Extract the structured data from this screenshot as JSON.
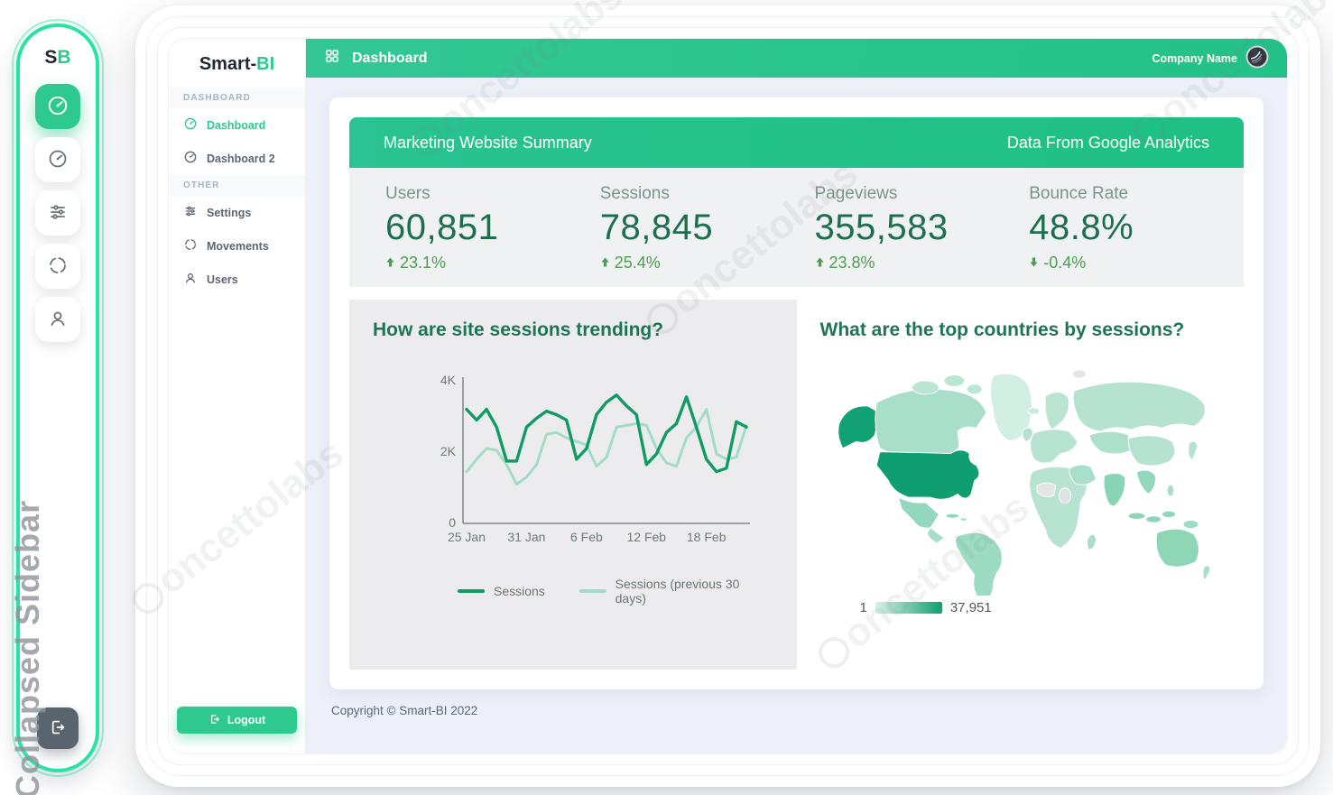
{
  "mini_sidebar": {
    "logo_s": "S",
    "logo_b": "B",
    "icons": [
      "dashboard-gauge-icon-active",
      "dashboard-gauge-icon",
      "settings-sliders-icon",
      "movements-refresh-icon",
      "users-person-icon",
      "logout-icon"
    ],
    "annotation_label": "Collapsed Sidebar"
  },
  "sidebar": {
    "logo_primary": "Smart-",
    "logo_accent": "BI",
    "sections": [
      {
        "header": "DASHBOARD",
        "items": [
          {
            "label": "Dashboard",
            "active": true
          },
          {
            "label": "Dashboard 2",
            "active": false
          }
        ]
      },
      {
        "header": "OTHER",
        "items": [
          {
            "label": "Settings",
            "active": false
          },
          {
            "label": "Movements",
            "active": false
          },
          {
            "label": "Users",
            "active": false
          }
        ]
      }
    ],
    "logout_label": "Logout"
  },
  "topbar": {
    "title": "Dashboard",
    "company": "Company Name"
  },
  "summary": {
    "title": "Marketing Website Summary",
    "source": "Data From Google Analytics",
    "kpis": [
      {
        "label": "Users",
        "value": "60,851",
        "delta": "23.1%",
        "direction": "up"
      },
      {
        "label": "Sessions",
        "value": "78,845",
        "delta": "25.4%",
        "direction": "up"
      },
      {
        "label": "Pageviews",
        "value": "355,583",
        "delta": "23.8%",
        "direction": "up"
      },
      {
        "label": "Bounce Rate",
        "value": "48.8%",
        "delta": "-0.4%",
        "direction": "down"
      }
    ],
    "colors": {
      "accent_green": "#2ec98f",
      "value_green": "#1d6f4e",
      "delta_green": "#4f9d53"
    }
  },
  "chart_data": [
    {
      "type": "line",
      "title": "How are site sessions trending?",
      "xlabel": "",
      "ylabel": "",
      "ylim": [
        0,
        4000
      ],
      "y_ticks": [
        "4K",
        "2K",
        "0"
      ],
      "n_points": 29,
      "x_tick_labels": [
        "25 Jan",
        "31 Jan",
        "6 Feb",
        "12 Feb",
        "18 Feb"
      ],
      "x_tick_indices": [
        0,
        6,
        12,
        18,
        24
      ],
      "grid": false,
      "legend_position": "bottom",
      "series": [
        {
          "name": "Sessions",
          "color": "#0f9b63",
          "values": [
            3200,
            2900,
            3200,
            2700,
            1750,
            1750,
            2700,
            2950,
            3150,
            3050,
            2900,
            1800,
            2100,
            3050,
            3400,
            3600,
            3300,
            3050,
            1650,
            1950,
            2550,
            2800,
            3550,
            2700,
            1800,
            1450,
            1550,
            2850,
            2700
          ]
        },
        {
          "name": "Sessions (previous 30 days)",
          "color": "#a3dcc4",
          "values": [
            1450,
            1800,
            2100,
            2050,
            1650,
            1100,
            1300,
            1650,
            2500,
            2550,
            2400,
            2300,
            2200,
            1600,
            1850,
            2700,
            2750,
            2800,
            2750,
            2100,
            1700,
            1600,
            2400,
            2700,
            3200,
            1950,
            1800,
            1850,
            2750
          ]
        }
      ]
    },
    {
      "type": "choropleth",
      "title": "What are the top countries by sessions?",
      "legend": {
        "min": "1",
        "max": "37,951"
      },
      "palette": {
        "low": "#d9f2e7",
        "high": "#0f9e6f",
        "no_data": "#e4e6e6"
      },
      "darkest_country": "United States"
    }
  ],
  "footer": {
    "copyright": "Copyright © Smart-BI 2022"
  },
  "watermark": {
    "text": "oncettolabs"
  }
}
